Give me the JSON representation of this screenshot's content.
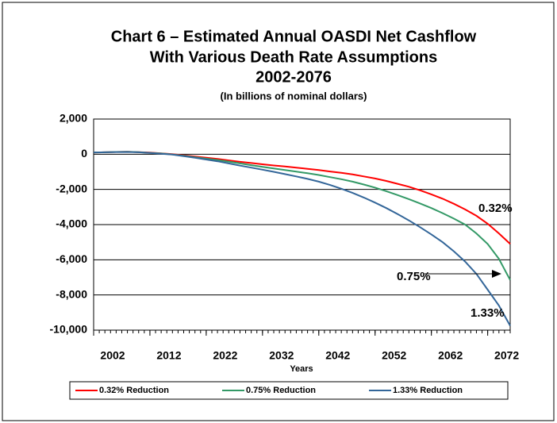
{
  "chart_data": {
    "type": "line",
    "title": [
      "Chart 6 – Estimated Annual OASDI Net Cashflow",
      "With Various Death Rate Assumptions",
      "2002-2076"
    ],
    "subtitle": "(In billions of nominal dollars)",
    "x_label": "Years",
    "x": [
      2002,
      2004,
      2006,
      2008,
      2010,
      2012,
      2014,
      2016,
      2018,
      2020,
      2022,
      2024,
      2026,
      2028,
      2030,
      2032,
      2034,
      2036,
      2038,
      2040,
      2042,
      2044,
      2046,
      2048,
      2050,
      2052,
      2054,
      2056,
      2058,
      2060,
      2062,
      2064,
      2066,
      2068,
      2070,
      2072,
      2074,
      2076
    ],
    "xlim": [
      2002,
      2076
    ],
    "xticks": [
      2002,
      2012,
      2022,
      2032,
      2042,
      2052,
      2062,
      2072
    ],
    "ylim": [
      -10000,
      2000
    ],
    "yticks": [
      {
        "value": 2000,
        "label": "2,000"
      },
      0,
      {
        "value": -2000,
        "label": "-2,000"
      },
      {
        "value": -4000,
        "label": "-4,000"
      },
      {
        "value": -6000,
        "label": "-6,000"
      },
      {
        "value": -8000,
        "label": "-8,000"
      },
      {
        "value": -10000,
        "label": "-10,000"
      }
    ],
    "grid": true,
    "series": [
      {
        "name": "0.32% Reduction",
        "color": "#ff0000",
        "values": [
          100,
          110,
          130,
          140,
          120,
          90,
          50,
          0,
          -60,
          -130,
          -200,
          -270,
          -350,
          -430,
          -500,
          -570,
          -640,
          -700,
          -760,
          -830,
          -900,
          -980,
          -1060,
          -1150,
          -1260,
          -1380,
          -1520,
          -1680,
          -1850,
          -2050,
          -2280,
          -2530,
          -2820,
          -3140,
          -3500,
          -3950,
          -4500,
          -5100
        ]
      },
      {
        "name": "0.75% Reduction",
        "color": "#339966",
        "values": [
          100,
          110,
          130,
          135,
          115,
          80,
          40,
          -10,
          -90,
          -170,
          -250,
          -330,
          -420,
          -520,
          -620,
          -720,
          -810,
          -900,
          -990,
          -1080,
          -1180,
          -1300,
          -1420,
          -1560,
          -1720,
          -1900,
          -2100,
          -2320,
          -2550,
          -2800,
          -3060,
          -3350,
          -3660,
          -4000,
          -4500,
          -5100,
          -5950,
          -7150
        ]
      },
      {
        "name": "1.33% Reduction",
        "color": "#336699",
        "values": [
          100,
          110,
          125,
          130,
          110,
          75,
          30,
          -20,
          -110,
          -200,
          -300,
          -400,
          -520,
          -650,
          -760,
          -880,
          -1000,
          -1130,
          -1260,
          -1400,
          -1560,
          -1750,
          -1960,
          -2200,
          -2460,
          -2750,
          -3060,
          -3400,
          -3760,
          -4150,
          -4560,
          -5000,
          -5520,
          -6100,
          -6800,
          -7700,
          -8600,
          -9750
        ]
      }
    ],
    "annotations": [
      "0.32%",
      "0.75%",
      "1.33%"
    ],
    "legend": "bottom"
  }
}
